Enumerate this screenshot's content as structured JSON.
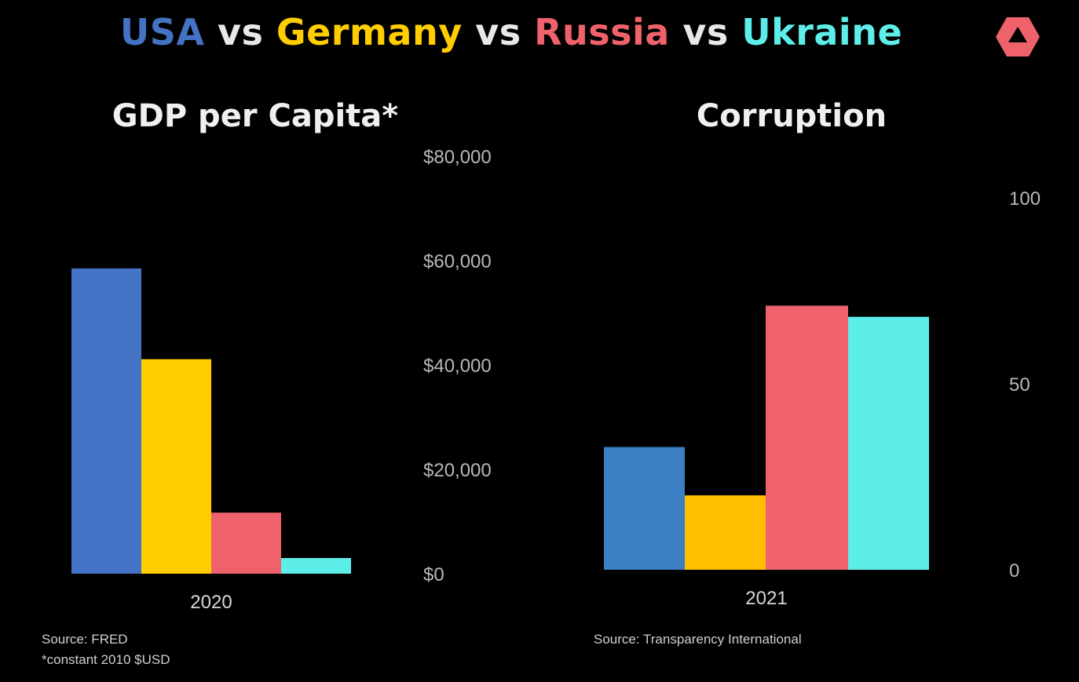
{
  "header": {
    "title_parts": [
      {
        "text": "USA",
        "color": "#4472c4"
      },
      {
        "text": " vs ",
        "color": "#e8e8e8"
      },
      {
        "text": "Germany",
        "color": "#ffcd00"
      },
      {
        "text": " vs ",
        "color": "#e8e8e8"
      },
      {
        "text": "Russia",
        "color": "#f0626b"
      },
      {
        "text": " vs ",
        "color": "#e8e8e8"
      },
      {
        "text": "Ukraine",
        "color": "#5eeeea"
      }
    ],
    "logo_icon": "triangle-logo-icon",
    "logo_color": "#f0626b"
  },
  "chart_data": [
    {
      "type": "bar",
      "title": "GDP per Capita*",
      "categories": [
        "2020"
      ],
      "series": [
        {
          "name": "USA",
          "color": "#4472c4",
          "values": [
            58500
          ]
        },
        {
          "name": "Germany",
          "color": "#ffcd00",
          "values": [
            41100
          ]
        },
        {
          "name": "Russia",
          "color": "#f0626b",
          "values": [
            11700
          ]
        },
        {
          "name": "Ukraine",
          "color": "#5eeeea",
          "values": [
            3000
          ]
        }
      ],
      "ylim": [
        0,
        80000
      ],
      "yticks": [
        "$0",
        "$20,000",
        "$40,000",
        "$60,000",
        "$80,000"
      ],
      "ytick_values": [
        0,
        20000,
        40000,
        60000,
        80000
      ],
      "axis_side": "right",
      "source": "Source: FRED",
      "note": "*constant 2010 $USD"
    },
    {
      "type": "bar",
      "title": "Corruption",
      "categories": [
        "2021"
      ],
      "series": [
        {
          "name": "USA",
          "color": "#3b7fc4",
          "values": [
            33
          ]
        },
        {
          "name": "Germany",
          "color": "#ffbf00",
          "values": [
            20
          ]
        },
        {
          "name": "Russia",
          "color": "#f0626b",
          "values": [
            71
          ]
        },
        {
          "name": "Ukraine",
          "color": "#5eeeea",
          "values": [
            68
          ]
        }
      ],
      "ylim": [
        0,
        100
      ],
      "yticks": [
        "0",
        "50",
        "100"
      ],
      "ytick_values": [
        0,
        50,
        100
      ],
      "axis_side": "right",
      "source": "Source: Transparency International"
    }
  ]
}
